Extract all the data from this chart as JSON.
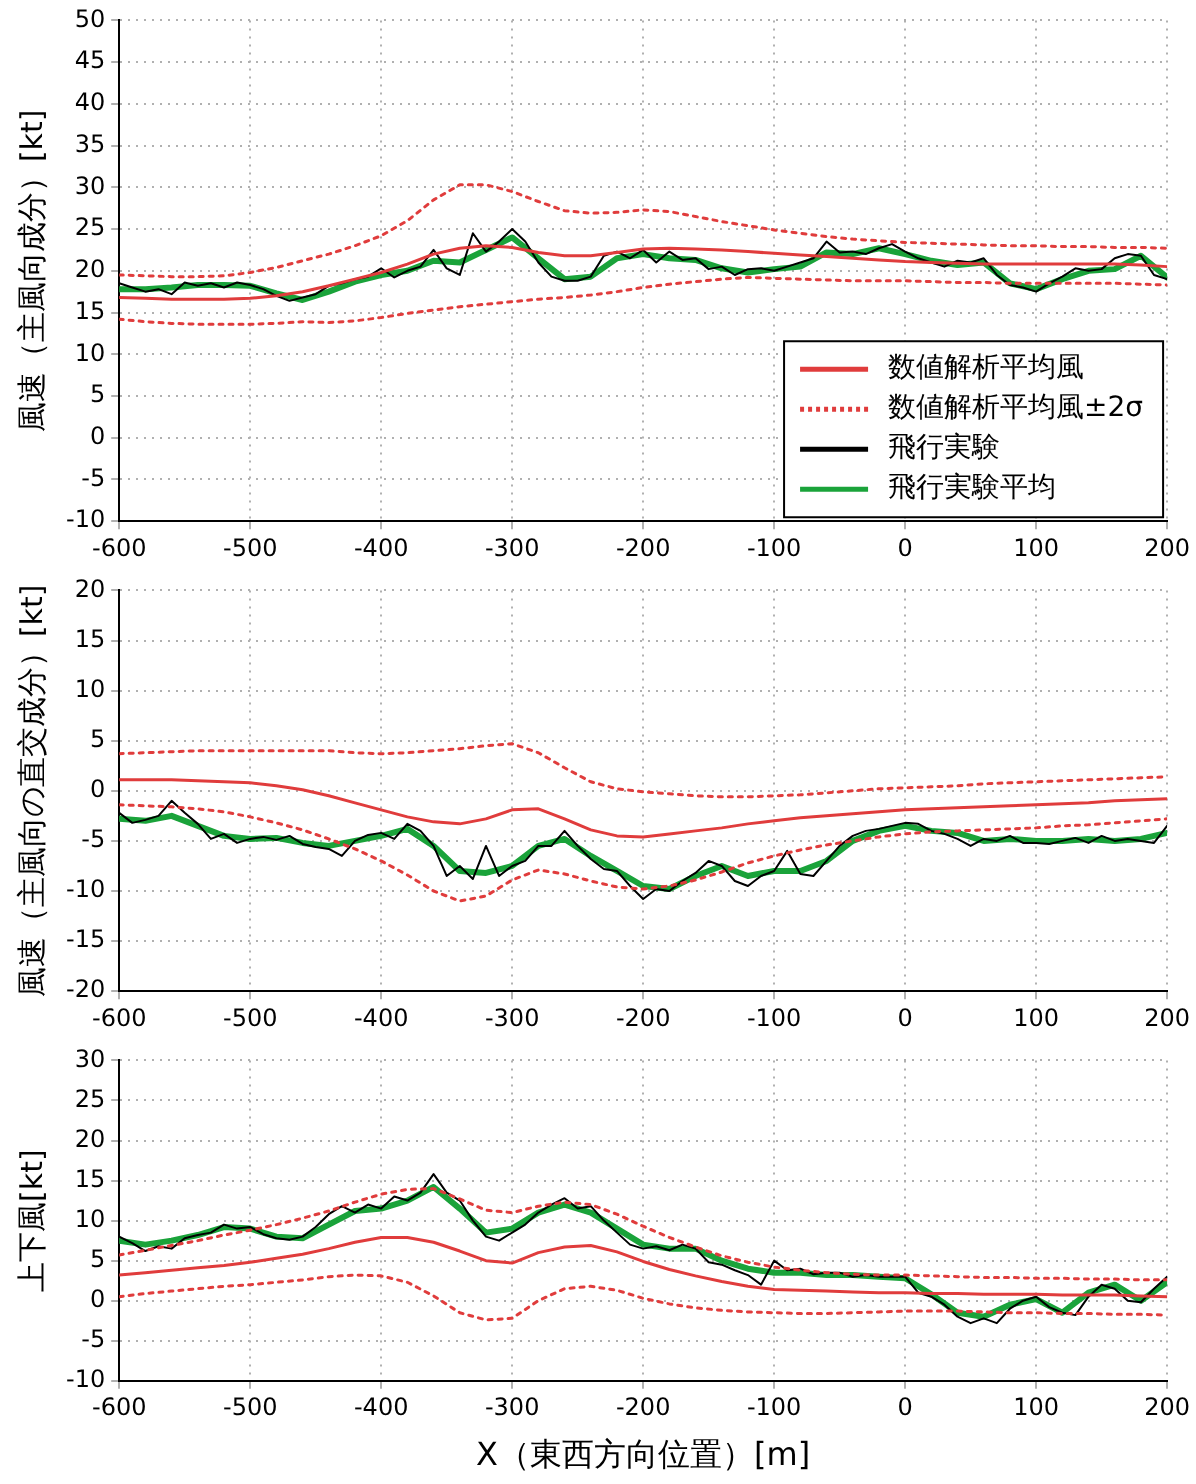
{
  "chart_data": [
    {
      "type": "line",
      "ylabel": "風速（主風向成分）[kt]",
      "xlim": [
        -600,
        200
      ],
      "xticks": [
        -600,
        -500,
        -400,
        -300,
        -200,
        -100,
        0,
        100,
        200
      ],
      "ylim": [
        -10,
        50
      ],
      "yticks": [
        -10,
        -5,
        0,
        5,
        10,
        15,
        20,
        25,
        30,
        35,
        40,
        45,
        50
      ],
      "grid": true,
      "legend": "bottom right",
      "marker": "none",
      "series": [
        {
          "name": "数値解析平均風",
          "color": "#e03c3c",
          "line_style": "solid",
          "x": [
            -600,
            -580,
            -560,
            -540,
            -520,
            -500,
            -480,
            -460,
            -440,
            -420,
            -400,
            -380,
            -360,
            -340,
            -320,
            -300,
            -280,
            -260,
            -240,
            -220,
            -200,
            -180,
            -160,
            -140,
            -120,
            -100,
            -80,
            -60,
            -40,
            -20,
            0,
            20,
            40,
            60,
            80,
            100,
            120,
            140,
            160,
            180,
            200
          ],
          "values": [
            16.8,
            16.7,
            16.6,
            16.6,
            16.6,
            16.7,
            17.0,
            17.5,
            18.2,
            19.0,
            19.8,
            20.8,
            22.0,
            22.7,
            23.0,
            22.8,
            22.2,
            21.8,
            21.8,
            22.2,
            22.6,
            22.7,
            22.6,
            22.5,
            22.3,
            22.1,
            21.9,
            21.7,
            21.5,
            21.3,
            21.1,
            21.0,
            20.9,
            20.8,
            20.8,
            20.8,
            20.8,
            20.8,
            20.8,
            20.7,
            20.5
          ]
        },
        {
          "name": "数値解析平均風±2σ",
          "color": "#e03c3c",
          "line_style": "dotted",
          "x": [
            -600,
            -580,
            -560,
            -540,
            -520,
            -500,
            -480,
            -460,
            -440,
            -420,
            -400,
            -380,
            -360,
            -340,
            -320,
            -300,
            -280,
            -260,
            -240,
            -220,
            -200,
            -180,
            -160,
            -140,
            -120,
            -100,
            -80,
            -60,
            -40,
            -20,
            0,
            20,
            40,
            60,
            80,
            100,
            120,
            140,
            160,
            180,
            200
          ],
          "values": [
            19.5,
            19.4,
            19.3,
            19.3,
            19.4,
            19.8,
            20.4,
            21.2,
            22.0,
            23.0,
            24.2,
            26.0,
            28.5,
            30.3,
            30.3,
            29.5,
            28.3,
            27.2,
            26.9,
            27.0,
            27.3,
            27.1,
            26.5,
            25.9,
            25.4,
            24.9,
            24.5,
            24.1,
            23.8,
            23.6,
            23.4,
            23.3,
            23.2,
            23.1,
            23.0,
            23.0,
            22.9,
            22.9,
            22.8,
            22.8,
            22.7
          ]
        },
        {
          "color": "#e03c3c",
          "line_style": "dotted",
          "x": [
            -600,
            -580,
            -560,
            -540,
            -520,
            -500,
            -480,
            -460,
            -440,
            -420,
            -400,
            -380,
            -360,
            -340,
            -320,
            -300,
            -280,
            -260,
            -240,
            -220,
            -200,
            -180,
            -160,
            -140,
            -120,
            -100,
            -80,
            -60,
            -40,
            -20,
            0,
            20,
            40,
            60,
            80,
            100,
            120,
            140,
            160,
            180,
            200
          ],
          "values": [
            14.2,
            13.9,
            13.7,
            13.6,
            13.6,
            13.6,
            13.7,
            13.9,
            13.8,
            14.0,
            14.4,
            14.9,
            15.3,
            15.7,
            16.0,
            16.3,
            16.6,
            16.8,
            17.1,
            17.5,
            18.0,
            18.4,
            18.7,
            19.0,
            19.2,
            19.1,
            19.0,
            18.9,
            18.8,
            18.8,
            18.8,
            18.7,
            18.6,
            18.6,
            18.5,
            18.5,
            18.5,
            18.5,
            18.5,
            18.4,
            18.3
          ]
        },
        {
          "name": "飛行実験",
          "color": "#000000",
          "line_style": "solid",
          "x": [
            -600,
            -590,
            -580,
            -570,
            -560,
            -550,
            -540,
            -530,
            -520,
            -510,
            -500,
            -490,
            -480,
            -470,
            -460,
            -450,
            -440,
            -430,
            -420,
            -410,
            -400,
            -390,
            -380,
            -370,
            -360,
            -350,
            -340,
            -330,
            -320,
            -310,
            -300,
            -290,
            -280,
            -270,
            -260,
            -250,
            -240,
            -230,
            -220,
            -210,
            -200,
            -190,
            -180,
            -170,
            -160,
            -150,
            -140,
            -130,
            -120,
            -110,
            -100,
            -90,
            -80,
            -70,
            -60,
            -50,
            -40,
            -30,
            -20,
            -10,
            0,
            10,
            20,
            30,
            40,
            50,
            60,
            70,
            80,
            90,
            100,
            110,
            120,
            130,
            140,
            150,
            160,
            170,
            180,
            190,
            200
          ],
          "values": [
            18.5,
            18,
            17.5,
            17.8,
            17.2,
            18.6,
            18.2,
            18.5,
            18,
            18.6,
            18.3,
            17.8,
            17,
            16.4,
            16.8,
            17.2,
            18.2,
            18.5,
            19,
            19.3,
            20.3,
            19.2,
            20,
            20.5,
            22.5,
            20.3,
            19.5,
            24.5,
            22.3,
            23.5,
            25,
            23.5,
            21,
            19.3,
            18.8,
            18.8,
            19.3,
            21.8,
            22.3,
            21.5,
            22.5,
            21,
            22.3,
            21.3,
            21.5,
            20.2,
            20.5,
            19.5,
            20.2,
            20.3,
            20,
            20.5,
            21,
            21.5,
            23.5,
            22.2,
            22.3,
            22,
            22.7,
            23.2,
            22.3,
            21.5,
            21,
            20.5,
            21.2,
            21,
            21.5,
            19.5,
            18.3,
            18,
            17.5,
            18.5,
            19.3,
            20.3,
            20,
            20.2,
            21.5,
            22,
            21.8,
            19.5,
            19
          ]
        },
        {
          "name": "飛行実験平均",
          "color": "#1aa33a",
          "line_style": "solid",
          "x": [
            -600,
            -580,
            -560,
            -540,
            -520,
            -500,
            -480,
            -460,
            -440,
            -420,
            -400,
            -380,
            -360,
            -340,
            -320,
            -300,
            -280,
            -260,
            -240,
            -220,
            -200,
            -180,
            -160,
            -140,
            -120,
            -100,
            -80,
            -60,
            -40,
            -20,
            0,
            20,
            40,
            60,
            80,
            100,
            120,
            140,
            160,
            180,
            200
          ],
          "values": [
            17.8,
            17.8,
            18.0,
            18.3,
            18.3,
            18.2,
            17.3,
            16.5,
            17.5,
            18.7,
            19.5,
            20.0,
            21.2,
            21.0,
            22.5,
            24.0,
            21.5,
            19.0,
            19.3,
            21.5,
            22.0,
            21.5,
            21.3,
            20.3,
            19.8,
            20.2,
            20.5,
            22.2,
            22.0,
            22.7,
            22.0,
            21.2,
            20.7,
            21.0,
            18.5,
            17.8,
            19.0,
            20.0,
            20.2,
            21.8,
            19.2
          ]
        }
      ]
    },
    {
      "type": "line",
      "ylabel": "風速（主風向の直交成分）[kt]",
      "xlim": [
        -600,
        200
      ],
      "xticks": [
        -600,
        -500,
        -400,
        -300,
        -200,
        -100,
        0,
        100,
        200
      ],
      "ylim": [
        -20,
        20
      ],
      "yticks": [
        -20,
        -15,
        -10,
        -5,
        0,
        5,
        10,
        15,
        20
      ],
      "grid": true,
      "legend": false,
      "marker": "none",
      "series": [
        {
          "color": "#e03c3c",
          "line_style": "solid",
          "x": [
            -600,
            -580,
            -560,
            -540,
            -520,
            -500,
            -480,
            -460,
            -440,
            -420,
            -400,
            -380,
            -360,
            -340,
            -320,
            -300,
            -280,
            -260,
            -240,
            -220,
            -200,
            -180,
            -160,
            -140,
            -120,
            -100,
            -80,
            -60,
            -40,
            -20,
            0,
            20,
            40,
            60,
            80,
            100,
            120,
            140,
            160,
            180,
            200
          ],
          "values": [
            1.1,
            1.1,
            1.1,
            1.0,
            0.9,
            0.8,
            0.5,
            0.1,
            -0.5,
            -1.2,
            -1.9,
            -2.6,
            -3.1,
            -3.3,
            -2.8,
            -1.9,
            -1.8,
            -2.8,
            -3.9,
            -4.5,
            -4.6,
            -4.3,
            -4.0,
            -3.7,
            -3.3,
            -3.0,
            -2.7,
            -2.5,
            -2.3,
            -2.1,
            -1.9,
            -1.8,
            -1.7,
            -1.6,
            -1.5,
            -1.4,
            -1.3,
            -1.2,
            -1.0,
            -0.9,
            -0.8
          ]
        },
        {
          "color": "#e03c3c",
          "line_style": "dotted",
          "x": [
            -600,
            -580,
            -560,
            -540,
            -520,
            -500,
            -480,
            -460,
            -440,
            -420,
            -400,
            -380,
            -360,
            -340,
            -320,
            -300,
            -280,
            -260,
            -240,
            -220,
            -200,
            -180,
            -160,
            -140,
            -120,
            -100,
            -80,
            -60,
            -40,
            -20,
            0,
            20,
            40,
            60,
            80,
            100,
            120,
            140,
            160,
            180,
            200
          ],
          "values": [
            3.7,
            3.8,
            3.9,
            4.0,
            4.0,
            4.0,
            4.0,
            4.0,
            4.0,
            3.8,
            3.7,
            3.8,
            4.0,
            4.2,
            4.5,
            4.7,
            3.8,
            2.3,
            0.9,
            0.2,
            -0.1,
            -0.3,
            -0.5,
            -0.6,
            -0.6,
            -0.5,
            -0.4,
            -0.2,
            0,
            0.2,
            0.3,
            0.4,
            0.5,
            0.7,
            0.8,
            0.9,
            1.0,
            1.1,
            1.2,
            1.3,
            1.4
          ]
        },
        {
          "color": "#e03c3c",
          "line_style": "dotted",
          "x": [
            -600,
            -580,
            -560,
            -540,
            -520,
            -500,
            -480,
            -460,
            -440,
            -420,
            -400,
            -380,
            -360,
            -340,
            -320,
            -300,
            -280,
            -260,
            -240,
            -220,
            -200,
            -180,
            -160,
            -140,
            -120,
            -100,
            -80,
            -60,
            -40,
            -20,
            0,
            20,
            40,
            60,
            80,
            100,
            120,
            140,
            160,
            180,
            200
          ],
          "values": [
            -1.4,
            -1.5,
            -1.6,
            -1.8,
            -2.1,
            -2.6,
            -3.2,
            -3.9,
            -4.8,
            -5.8,
            -7.0,
            -8.4,
            -10.0,
            -11.0,
            -10.5,
            -8.9,
            -7.9,
            -8.3,
            -9.0,
            -9.6,
            -9.8,
            -9.5,
            -8.9,
            -8.1,
            -7.2,
            -6.5,
            -5.9,
            -5.4,
            -5.0,
            -4.6,
            -4.3,
            -4.1,
            -4.0,
            -3.9,
            -3.8,
            -3.7,
            -3.5,
            -3.4,
            -3.2,
            -3.0,
            -2.8
          ]
        },
        {
          "color": "#000000",
          "line_style": "solid",
          "x": [
            -600,
            -590,
            -580,
            -570,
            -560,
            -550,
            -540,
            -530,
            -520,
            -510,
            -500,
            -490,
            -480,
            -470,
            -460,
            -450,
            -440,
            -430,
            -420,
            -410,
            -400,
            -390,
            -380,
            -370,
            -360,
            -350,
            -340,
            -330,
            -320,
            -310,
            -300,
            -290,
            -280,
            -270,
            -260,
            -250,
            -240,
            -230,
            -220,
            -210,
            -200,
            -190,
            -180,
            -170,
            -160,
            -150,
            -140,
            -130,
            -120,
            -110,
            -100,
            -90,
            -80,
            -70,
            -60,
            -50,
            -40,
            -30,
            -20,
            -10,
            0,
            10,
            20,
            30,
            40,
            50,
            60,
            70,
            80,
            90,
            100,
            110,
            120,
            130,
            140,
            150,
            160,
            170,
            180,
            190,
            200
          ],
          "values": [
            -2.2,
            -3.2,
            -2.9,
            -2.5,
            -1,
            -2.2,
            -3.3,
            -4.8,
            -4.3,
            -5.2,
            -4.8,
            -4.6,
            -4.9,
            -4.5,
            -5.3,
            -5.6,
            -5.8,
            -6.5,
            -5,
            -4.4,
            -4.2,
            -4.8,
            -3.3,
            -4,
            -5.5,
            -8.5,
            -7.5,
            -8.8,
            -5.5,
            -8.5,
            -7.5,
            -7,
            -5.5,
            -5.5,
            -4,
            -5.5,
            -6.8,
            -7.8,
            -8,
            -9.5,
            -10.8,
            -9.8,
            -10,
            -9,
            -8.2,
            -7,
            -7.5,
            -9,
            -9.5,
            -8.5,
            -8,
            -6,
            -8.3,
            -8.5,
            -7,
            -5.5,
            -4.5,
            -4,
            -3.8,
            -3.5,
            -3.2,
            -3.3,
            -4,
            -4.3,
            -4.8,
            -5.5,
            -4.8,
            -5,
            -4.5,
            -5.2,
            -5.2,
            -5.3,
            -5,
            -4.7,
            -5.2,
            -4.5,
            -5,
            -4.8,
            -5,
            -5.2,
            -3.5
          ]
        },
        {
          "color": "#1aa33a",
          "line_style": "solid",
          "x": [
            -600,
            -580,
            -560,
            -540,
            -520,
            -500,
            -480,
            -460,
            -440,
            -420,
            -400,
            -380,
            -360,
            -340,
            -320,
            -300,
            -280,
            -260,
            -240,
            -220,
            -200,
            -180,
            -160,
            -140,
            -120,
            -100,
            -80,
            -60,
            -40,
            -20,
            0,
            20,
            40,
            60,
            80,
            100,
            120,
            140,
            160,
            180,
            200
          ],
          "values": [
            -2.8,
            -3.0,
            -2.5,
            -3.5,
            -4.5,
            -4.8,
            -4.7,
            -5.2,
            -5.5,
            -5.0,
            -4.5,
            -3.8,
            -5.5,
            -8.0,
            -8.2,
            -7.5,
            -5.5,
            -4.8,
            -6.5,
            -8.0,
            -9.5,
            -9.8,
            -8.5,
            -7.5,
            -8.5,
            -8.0,
            -8.0,
            -7.0,
            -5.0,
            -4.0,
            -3.5,
            -4.0,
            -4.2,
            -5.0,
            -4.8,
            -5.0,
            -5.0,
            -4.8,
            -5.0,
            -4.8,
            -4.2
          ]
        }
      ]
    },
    {
      "type": "line",
      "ylabel": "上下風[kt]",
      "xlabel": "X（東西方向位置）[m]",
      "xlim": [
        -600,
        200
      ],
      "xticks": [
        -600,
        -500,
        -400,
        -300,
        -200,
        -100,
        0,
        100,
        200
      ],
      "ylim": [
        -10,
        30
      ],
      "yticks": [
        -10,
        -5,
        0,
        5,
        10,
        15,
        20,
        25,
        30
      ],
      "grid": true,
      "legend": false,
      "marker": "none",
      "series": [
        {
          "color": "#e03c3c",
          "line_style": "solid",
          "x": [
            -600,
            -580,
            -560,
            -540,
            -520,
            -500,
            -480,
            -460,
            -440,
            -420,
            -400,
            -380,
            -360,
            -340,
            -320,
            -300,
            -280,
            -260,
            -240,
            -220,
            -200,
            -180,
            -160,
            -140,
            -120,
            -100,
            -80,
            -60,
            -40,
            -20,
            0,
            20,
            40,
            60,
            80,
            100,
            120,
            140,
            160,
            180,
            200
          ],
          "values": [
            3.2,
            3.5,
            3.8,
            4.1,
            4.4,
            4.8,
            5.3,
            5.8,
            6.5,
            7.3,
            7.9,
            7.9,
            7.3,
            6.2,
            5.0,
            4.7,
            6.0,
            6.7,
            6.9,
            6.1,
            4.9,
            3.9,
            3.1,
            2.4,
            1.8,
            1.4,
            1.3,
            1.2,
            1.1,
            1.0,
            1.0,
            0.9,
            0.9,
            0.8,
            0.8,
            0.8,
            0.7,
            0.7,
            0.7,
            0.6,
            0.5
          ]
        },
        {
          "color": "#e03c3c",
          "line_style": "dotted",
          "x": [
            -600,
            -580,
            -560,
            -540,
            -520,
            -500,
            -480,
            -460,
            -440,
            -420,
            -400,
            -380,
            -360,
            -340,
            -320,
            -300,
            -280,
            -260,
            -240,
            -220,
            -200,
            -180,
            -160,
            -140,
            -120,
            -100,
            -80,
            -60,
            -40,
            -20,
            0,
            20,
            40,
            60,
            80,
            100,
            120,
            140,
            160,
            180,
            200
          ],
          "values": [
            5.7,
            6.3,
            6.9,
            7.5,
            8.2,
            8.8,
            9.5,
            10.3,
            11.2,
            12.3,
            13.3,
            13.9,
            14.0,
            12.7,
            11.3,
            11.0,
            11.8,
            12.3,
            12.0,
            10.8,
            9.3,
            7.9,
            6.7,
            5.6,
            4.8,
            4.2,
            3.8,
            3.5,
            3.3,
            3.2,
            3.2,
            3.1,
            3.0,
            2.9,
            2.9,
            2.8,
            2.8,
            2.7,
            2.7,
            2.6,
            2.6
          ]
        },
        {
          "color": "#e03c3c",
          "line_style": "dotted",
          "x": [
            -600,
            -580,
            -560,
            -540,
            -520,
            -500,
            -480,
            -460,
            -440,
            -420,
            -400,
            -380,
            -360,
            -340,
            -320,
            -300,
            -280,
            -260,
            -240,
            -220,
            -200,
            -180,
            -160,
            -140,
            -120,
            -100,
            -80,
            -60,
            -40,
            -20,
            0,
            20,
            40,
            60,
            80,
            100,
            120,
            140,
            160,
            180,
            200
          ],
          "values": [
            0.5,
            0.9,
            1.2,
            1.5,
            1.8,
            2.0,
            2.3,
            2.6,
            3.0,
            3.2,
            3.1,
            2.3,
            0.6,
            -1.5,
            -2.4,
            -2.2,
            0,
            1.5,
            1.8,
            1.3,
            0.3,
            -0.4,
            -0.9,
            -1.2,
            -1.4,
            -1.5,
            -1.6,
            -1.6,
            -1.5,
            -1.4,
            -1.3,
            -1.3,
            -1.3,
            -1.4,
            -1.5,
            -1.5,
            -1.6,
            -1.6,
            -1.7,
            -1.7,
            -1.8
          ]
        },
        {
          "color": "#000000",
          "line_style": "solid",
          "x": [
            -600,
            -590,
            -580,
            -570,
            -560,
            -550,
            -540,
            -530,
            -520,
            -510,
            -500,
            -490,
            -480,
            -470,
            -460,
            -450,
            -440,
            -430,
            -420,
            -410,
            -400,
            -390,
            -380,
            -370,
            -360,
            -350,
            -340,
            -330,
            -320,
            -310,
            -300,
            -290,
            -280,
            -270,
            -260,
            -250,
            -240,
            -230,
            -220,
            -210,
            -200,
            -190,
            -180,
            -170,
            -160,
            -150,
            -140,
            -130,
            -120,
            -110,
            -100,
            -90,
            -80,
            -70,
            -60,
            -50,
            -40,
            -30,
            -20,
            -10,
            0,
            10,
            20,
            30,
            40,
            50,
            60,
            70,
            80,
            90,
            100,
            110,
            120,
            130,
            140,
            150,
            160,
            170,
            180,
            190,
            200
          ],
          "values": [
            8,
            7.2,
            6.2,
            6.8,
            6.5,
            7.8,
            8.2,
            8.5,
            9.5,
            9,
            9.2,
            8.3,
            7.8,
            7.6,
            8,
            9.2,
            10.8,
            11.8,
            11,
            12,
            11.5,
            13,
            12.5,
            13.5,
            15.8,
            13.5,
            12.5,
            10,
            8,
            7.5,
            8.5,
            9.5,
            11,
            12,
            12.8,
            11.5,
            11.8,
            10,
            8.5,
            7,
            6.5,
            6.8,
            6.3,
            7,
            6.5,
            4.8,
            4.5,
            3.8,
            3.2,
            2,
            5,
            3.8,
            4,
            3.3,
            3.5,
            3.5,
            3,
            3.2,
            3,
            3,
            3,
            1,
            0.5,
            -0.5,
            -2,
            -2.8,
            -2.2,
            -2.8,
            -1,
            0,
            0.5,
            -0.8,
            -1.5,
            -1.8,
            0.5,
            2,
            1.5,
            0,
            -0.2,
            1.5,
            3
          ]
        },
        {
          "color": "#1aa33a",
          "line_style": "solid",
          "x": [
            -600,
            -580,
            -560,
            -540,
            -520,
            -500,
            -480,
            -460,
            -440,
            -420,
            -400,
            -380,
            -360,
            -340,
            -320,
            -300,
            -280,
            -260,
            -240,
            -220,
            -200,
            -180,
            -160,
            -140,
            -120,
            -100,
            -80,
            -60,
            -40,
            -20,
            0,
            20,
            40,
            60,
            80,
            100,
            120,
            140,
            160,
            180,
            200
          ],
          "values": [
            7.5,
            7.0,
            7.5,
            8.2,
            9.2,
            9.0,
            8.0,
            7.8,
            9.5,
            11.2,
            11.5,
            12.5,
            14.2,
            11.5,
            8.5,
            9.0,
            11.0,
            12.0,
            11.0,
            9.0,
            7.0,
            6.5,
            6.5,
            5.0,
            4.0,
            3.5,
            3.5,
            3.2,
            3.2,
            3.0,
            2.8,
            0.8,
            -1.5,
            -2.0,
            -0.5,
            0.2,
            -1.5,
            1.0,
            2.0,
            0.0,
            2.3
          ]
        }
      ]
    }
  ]
}
